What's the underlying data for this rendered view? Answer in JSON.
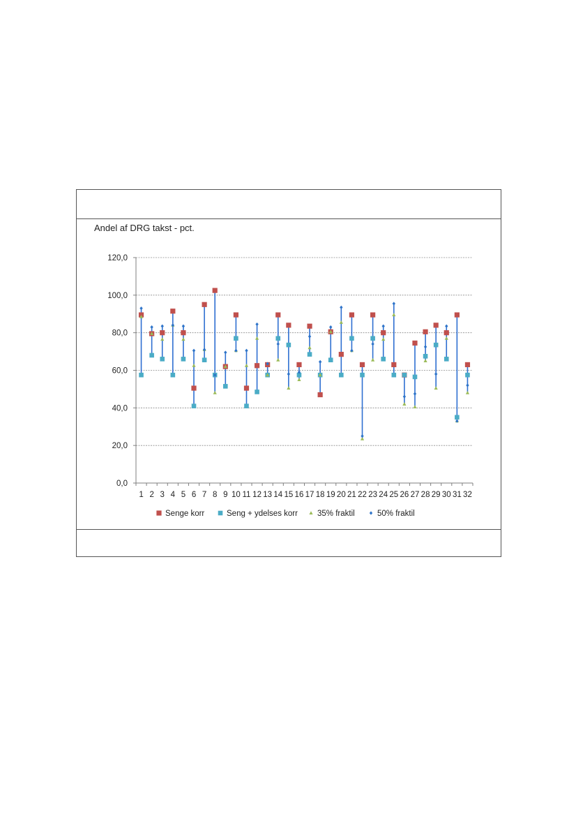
{
  "chart_data": {
    "type": "scatter",
    "title": "",
    "ylabel": "Andel af DRG takst - pct.",
    "xlabel": "",
    "ylim": [
      0,
      120
    ],
    "yticks": [
      "0,0",
      "20,0",
      "40,0",
      "60,0",
      "80,0",
      "100,0",
      "120,0"
    ],
    "grid": true,
    "legend_position": "bottom",
    "categories": [
      "1",
      "2",
      "3",
      "4",
      "5",
      "6",
      "7",
      "8",
      "9",
      "10",
      "11",
      "12",
      "13",
      "14",
      "15",
      "16",
      "17",
      "18",
      "19",
      "20",
      "21",
      "22",
      "23",
      "24",
      "25",
      "26",
      "27",
      "28",
      "29",
      "30",
      "31",
      "32"
    ],
    "series": [
      {
        "name": "Senge korr",
        "color": "#c0504d",
        "marker": "square-large",
        "values": [
          89.5,
          79.5,
          80,
          91.5,
          80,
          50.5,
          95,
          102.5,
          62,
          89.5,
          50.5,
          62.5,
          63,
          89.5,
          84,
          63,
          83.5,
          47,
          80.5,
          68.5,
          89.5,
          63,
          89.5,
          80,
          63,
          57.5,
          74.5,
          80.5,
          84,
          80,
          89.5,
          63
        ]
      },
      {
        "name": "Seng + ydelses korr",
        "color": "#4bacc6",
        "marker": "square",
        "values": [
          57.5,
          68,
          66,
          57.5,
          66,
          41,
          65.5,
          57.5,
          51.5,
          77,
          41,
          48.5,
          57.5,
          77,
          73.5,
          57.5,
          68.5,
          57.5,
          65.5,
          57.5,
          77,
          57.5,
          77,
          66,
          57.5,
          57.5,
          56.5,
          67.5,
          73.5,
          66,
          35,
          57.5
        ]
      },
      {
        "name": "35% fraktil",
        "color": "#9bbb59",
        "marker": "triangle",
        "values": [
          88.5,
          79.5,
          76.5,
          84,
          76.5,
          62.5,
          71,
          48,
          62,
          70.5,
          62.5,
          77,
          57.5,
          65.5,
          50.5,
          55,
          72,
          57.5,
          80.5,
          85.5,
          70.5,
          23.5,
          65.5,
          76.5,
          89.5,
          42,
          40.5,
          65,
          50.5,
          77,
          33,
          48
        ]
      },
      {
        "name": "50% fraktil",
        "color": "#2e74c9",
        "marker": "diamond",
        "values": [
          93,
          83,
          83.5,
          84,
          83.5,
          70.5,
          71,
          57.5,
          69.5,
          70.5,
          70.5,
          84.5,
          63.5,
          74,
          58,
          59,
          78,
          64.5,
          83,
          93.5,
          70.5,
          25,
          74,
          83.5,
          95.5,
          46,
          47.5,
          72.5,
          58,
          83.5,
          33,
          52
        ]
      }
    ]
  }
}
